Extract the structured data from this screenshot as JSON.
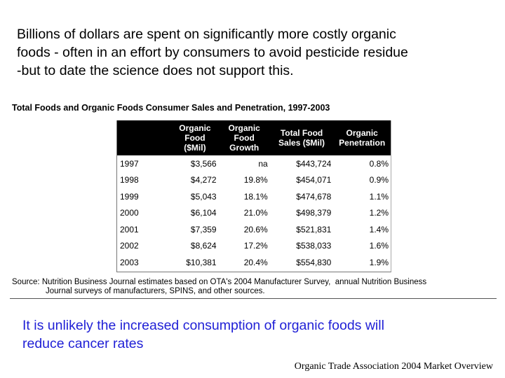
{
  "intro": {
    "lines": [
      "Billions of dollars are spent on significantly more costly organic",
      "foods - often in an effort by consumers to avoid pesticide residue",
      "-but to date the science does not support this."
    ]
  },
  "figure": {
    "title": "Total Foods and Organic Foods Consumer Sales and Penetration, 1997-2003",
    "columns": [
      {
        "lines": [
          ""
        ]
      },
      {
        "lines": [
          "Organic",
          "Food",
          "($Mil)"
        ]
      },
      {
        "lines": [
          "Organic",
          "Food",
          "Growth"
        ]
      },
      {
        "lines": [
          "Total Food",
          "Sales ($Mil)"
        ]
      },
      {
        "lines": [
          "Organic",
          "Penetration"
        ]
      }
    ],
    "rows": [
      [
        "1997",
        "$3,566",
        "na",
        "$443,724",
        "0.8%"
      ],
      [
        "1998",
        "$4,272",
        "19.8%",
        "$454,071",
        "0.9%"
      ],
      [
        "1999",
        "$5,043",
        "18.1%",
        "$474,678",
        "1.1%"
      ],
      [
        "2000",
        "$6,104",
        "21.0%",
        "$498,379",
        "1.2%"
      ],
      [
        "2001",
        "$7,359",
        "20.6%",
        "$521,831",
        "1.4%"
      ],
      [
        "2002",
        "$8,624",
        "17.2%",
        "$538,033",
        "1.6%"
      ],
      [
        "2003",
        "$10,381",
        "20.4%",
        "$554,830",
        "1.9%"
      ]
    ],
    "source_lines": [
      "Source: Nutrition Business Journal estimates based on OTA's 2004 Manufacturer Survey,  annual Nutrition Business",
      "Journal surveys of manufacturers, SPINS, and other sources."
    ]
  },
  "conclusion": {
    "lines": [
      "It is unlikely the increased consumption of organic foods will",
      "reduce cancer rates"
    ],
    "color": "#1f1fd6"
  },
  "credit": "Organic Trade Association 2004 Market Overview"
}
